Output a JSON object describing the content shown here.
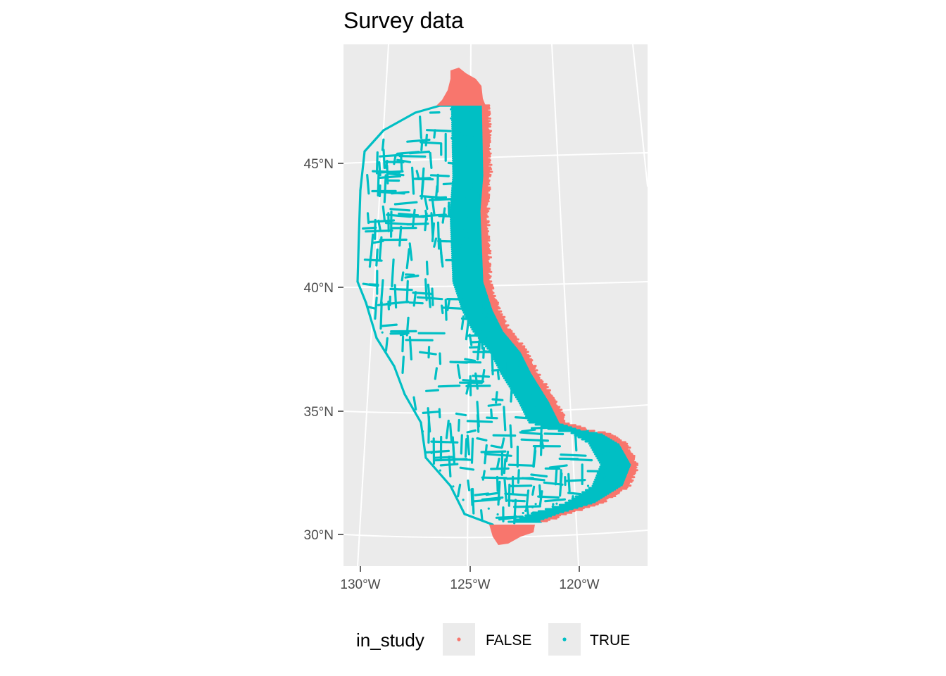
{
  "chart_data": {
    "type": "scatter",
    "title": "Survey data",
    "xlabel": "",
    "ylabel": "",
    "x_ticks": [
      "130°W",
      "125°W",
      "120°W"
    ],
    "y_ticks": [
      "30°N",
      "35°N",
      "40°N",
      "45°N"
    ],
    "xlim": [
      -130.5,
      -117
    ],
    "ylim": [
      29,
      48.5
    ],
    "grid": true,
    "legend": {
      "title": "in_study",
      "position": "bottom",
      "entries": [
        {
          "label": "FALSE",
          "color": "#F8766D"
        },
        {
          "label": "TRUE",
          "color": "#00BFC4"
        }
      ]
    },
    "series": [
      {
        "name": "FALSE",
        "color": "#F8766D",
        "regions": [
          {
            "note": "north cap",
            "lon": [
              -125.6,
              -124.4
            ],
            "lat": [
              47.0,
              48.6
            ]
          },
          {
            "note": "coastal fringe",
            "lon": [
              -124.5,
              -117.4
            ],
            "lat": [
              32.0,
              47.0
            ]
          },
          {
            "note": "south cap",
            "lon": [
              -124.2,
              -122.0
            ],
            "lat": [
              29.7,
              30.7
            ]
          }
        ]
      },
      {
        "name": "TRUE",
        "color": "#00BFC4",
        "regions": [
          {
            "note": "survey transect grid",
            "lon": [
              -130.0,
              -117.4
            ],
            "lat": [
              30.3,
              47.2
            ]
          }
        ]
      }
    ]
  }
}
